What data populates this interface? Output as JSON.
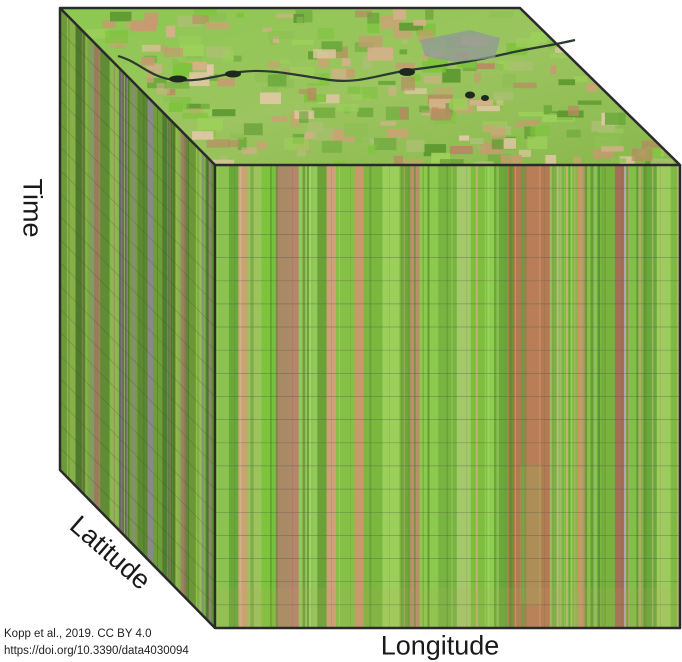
{
  "figure": {
    "axes": {
      "time": "Time",
      "latitude": "Latitude",
      "longitude": "Longitude"
    },
    "credit": {
      "citation": "Kopp et al., 2019.  CC BY 4.0",
      "doi": "https://doi.org/10.3390/data4030094"
    },
    "faces": {
      "top": "satellite-map",
      "front": "spectral-time-series",
      "side": "spectral-time-series"
    },
    "colors": {
      "outline": "#2a2a2a",
      "green": "#7dc43c",
      "brown": "#b07850",
      "river": "#2a3a30"
    }
  }
}
